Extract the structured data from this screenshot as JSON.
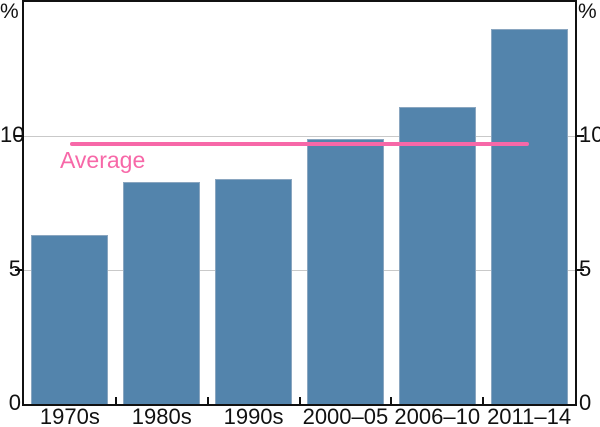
{
  "chart_data": {
    "type": "bar",
    "title": "",
    "categories": [
      "1970s",
      "1980s",
      "1990s",
      "2000–05",
      "2006–10",
      "2011–14"
    ],
    "values": [
      6.3,
      8.3,
      8.4,
      9.9,
      11.1,
      14.0
    ],
    "xlabel": "",
    "ylabel": "%",
    "ylim": [
      0,
      15
    ],
    "y_ticks": [
      {
        "value": 0,
        "label": "0"
      },
      {
        "value": 5,
        "label": "5"
      },
      {
        "value": 10,
        "label": "10"
      }
    ],
    "grid_values": [
      5,
      10
    ],
    "grid": "on",
    "legend_position": "none",
    "bar_gap_ratio": 0.16,
    "average_line": {
      "label": "Average",
      "value": 9.7,
      "spans": "from 1970s bar center to 2011–14 bar center"
    }
  },
  "labels": {
    "y_unit_left": "%",
    "y_unit_right": "%",
    "average": "Average"
  },
  "colors": {
    "bar_fill": "#5384ac",
    "bar_border": "#8aa6c0",
    "average_line": "#f768a8",
    "average_text": "#f768a8",
    "gridline": "#c9c9c9",
    "axis_frame": "#111111",
    "text": "#111111",
    "background": "#ffffff"
  }
}
